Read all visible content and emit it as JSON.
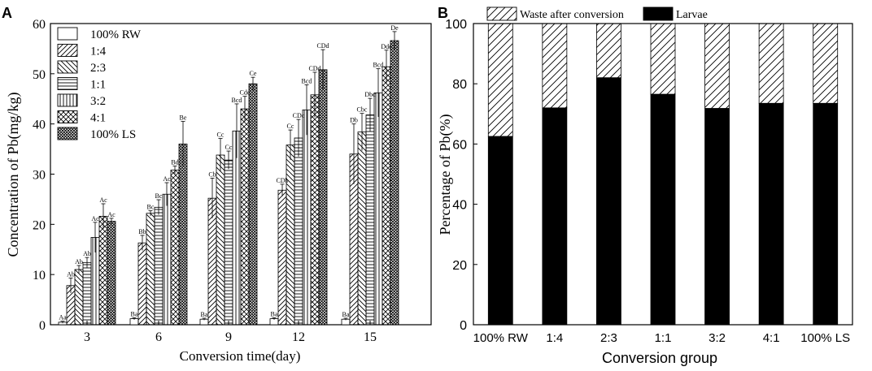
{
  "colors": {
    "ink": "#000000",
    "background": "#ffffff",
    "larvae": "#000000"
  },
  "chart_data": [
    {
      "panel_label": "A",
      "type": "bar",
      "xlabel": "Conversion time(day)",
      "ylabel": "Concentration of Pb(mg/kg)",
      "categories": [
        "3",
        "6",
        "9",
        "12",
        "15"
      ],
      "ylim": [
        0,
        60
      ],
      "yticks": [
        "0",
        "10",
        "20",
        "30",
        "40",
        "50",
        "60"
      ],
      "legend_position": "top-left",
      "series": [
        {
          "name": "100% RW",
          "pattern": "blank",
          "values": [
            0.5,
            1.2,
            1.1,
            1.2,
            1.1
          ],
          "errors": [
            0.2,
            0.2,
            0.2,
            0.2,
            0.2
          ],
          "labels": [
            "Aa",
            "Ba",
            "Ba",
            "Ba",
            "Ba"
          ]
        },
        {
          "name": "1:4",
          "pattern": "fwd",
          "values": [
            7.8,
            16.3,
            25.2,
            26.8,
            34.0
          ],
          "errors": [
            1.5,
            1.5,
            4.0,
            1.2,
            6.0
          ],
          "labels": [
            "Ab",
            "Bb",
            "Cb",
            "CDb",
            "Db"
          ]
        },
        {
          "name": "2:3",
          "pattern": "back",
          "values": [
            11.0,
            22.2,
            33.8,
            35.8,
            38.4
          ],
          "errors": [
            0.8,
            0.5,
            3.3,
            3.0,
            3.7
          ],
          "labels": [
            "Ab",
            "Bc",
            "Cc",
            "Cc",
            "Cbc"
          ]
        },
        {
          "name": "1:1",
          "pattern": "horiz",
          "values": [
            12.4,
            23.4,
            32.8,
            37.2,
            41.8
          ],
          "errors": [
            1.0,
            1.5,
            1.8,
            3.7,
            3.3
          ],
          "labels": [
            "Ab",
            "Bc",
            "Cc",
            "CDc",
            "Dbc"
          ]
        },
        {
          "name": "3:2",
          "pattern": "vert",
          "values": [
            17.4,
            26.0,
            38.6,
            42.8,
            46.2
          ],
          "errors": [
            3.0,
            2.3,
            5.4,
            5.0,
            4.8
          ],
          "labels": [
            "Ac",
            "Ac",
            "Bcd",
            "Bcd",
            "Bcd"
          ]
        },
        {
          "name": "4:1",
          "pattern": "cross",
          "values": [
            21.6,
            30.8,
            43.0,
            45.8,
            51.4
          ],
          "errors": [
            2.5,
            0.8,
            2.5,
            4.5,
            3.3
          ],
          "labels": [
            "Ac",
            "Bd",
            "Cde",
            "CDd",
            "Dde"
          ]
        },
        {
          "name": "100% LS",
          "pattern": "dense",
          "values": [
            20.6,
            36.0,
            48.0,
            50.8,
            56.6
          ],
          "errors": [
            0.6,
            4.5,
            1.3,
            4.0,
            1.8
          ],
          "labels": [
            "Ac",
            "Be",
            "Ce",
            "CDd",
            "De"
          ]
        }
      ]
    },
    {
      "panel_label": "B",
      "type": "bar",
      "stacked": true,
      "xlabel": "Conversion group",
      "ylabel": "Percentage of Pb(%)",
      "categories": [
        "100% RW",
        "1:4",
        "2:3",
        "1:1",
        "3:2",
        "4:1",
        "100% LS"
      ],
      "ylim": [
        0,
        100
      ],
      "yticks": [
        "0",
        "20",
        "40",
        "60",
        "80",
        "100"
      ],
      "legend_position": "top",
      "series": [
        {
          "name": "Larvae",
          "pattern": "solid",
          "values": [
            62.5,
            72.0,
            82.0,
            76.5,
            71.8,
            73.5,
            73.5
          ]
        },
        {
          "name": "Waste after conversion",
          "pattern": "fwd",
          "values": [
            37.5,
            28.0,
            18.0,
            23.5,
            28.2,
            26.5,
            26.5
          ]
        }
      ],
      "legend_order": [
        "Waste after conversion",
        "Larvae"
      ]
    }
  ]
}
